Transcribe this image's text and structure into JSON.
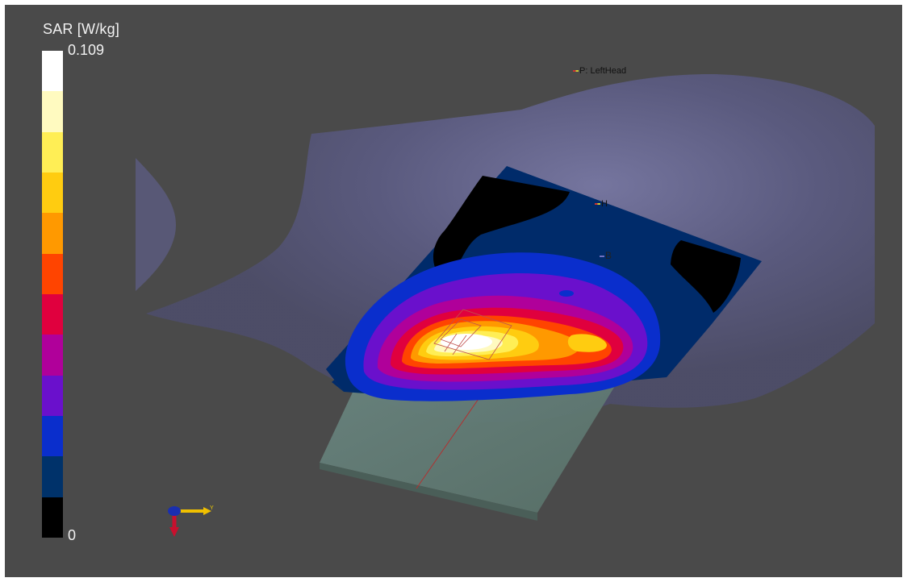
{
  "legend": {
    "title": "SAR [W/kg]",
    "max_label": "0.109",
    "min_label": "0",
    "value_max": 0.109,
    "value_min": 0,
    "colors": [
      "#ffffff",
      "#fffac0",
      "#ffee55",
      "#ffcc10",
      "#ff9900",
      "#ff4400",
      "#e0003e",
      "#b0009a",
      "#6a10cc",
      "#0a2ecc",
      "#00326a",
      "#000000"
    ]
  },
  "probes": {
    "reference": "P: LeftHead",
    "h": "H",
    "b": "B"
  },
  "axes": {
    "y_label": "Y",
    "x_color": "#c8102e",
    "y_color": "#f0c000",
    "z_color": "#1a2fb0"
  },
  "scene": {
    "background": "#4a4a4a",
    "head_color": "#545478",
    "phone_color": "#5e7870"
  }
}
